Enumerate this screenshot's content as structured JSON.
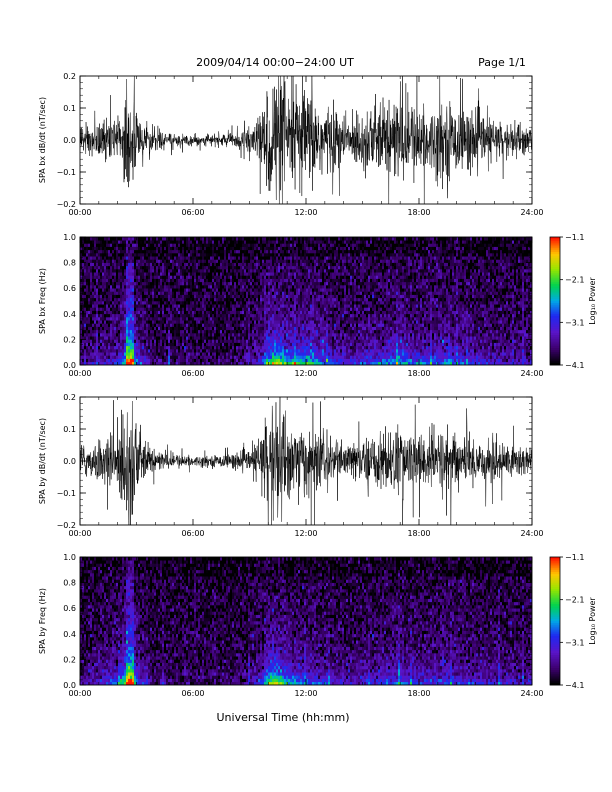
{
  "header": {
    "date_range": "2009/04/14  00:00−24:00 UT",
    "page": "Page 1/1"
  },
  "xlabel": "Universal Time (hh:mm)",
  "chart_data": [
    {
      "type": "line",
      "ylabel": "SPA bx dB/dt (nT/sec)",
      "xlim": [
        0,
        24
      ],
      "ylim": [
        -0.2,
        0.2
      ],
      "x_ticks": [
        "00:00",
        "06:00",
        "12:00",
        "18:00",
        "24:00"
      ],
      "y_ticks": [
        "0.2",
        "0.1",
        "0.0",
        "−0.1",
        "−0.2"
      ],
      "y_tick_values": [
        0.2,
        0.1,
        0.0,
        -0.1,
        -0.2
      ],
      "envelope": {
        "x": [
          0,
          0.5,
          1,
          1.5,
          2,
          2.3,
          2.5,
          2.6,
          2.8,
          3,
          3.2,
          3.5,
          4,
          5,
          6,
          7,
          8,
          9,
          9.3,
          9.7,
          10,
          10.3,
          10.6,
          11,
          11.5,
          12,
          12.5,
          13,
          13.5,
          14,
          14.5,
          15,
          15.5,
          16,
          16.5,
          17,
          17.5,
          18,
          18.5,
          19,
          19.5,
          20,
          21,
          22,
          23,
          24
        ],
        "amplitude": [
          0.04,
          0.05,
          0.055,
          0.06,
          0.075,
          0.12,
          0.2,
          0.2,
          0.2,
          0.11,
          0.07,
          0.05,
          0.03,
          0.02,
          0.015,
          0.015,
          0.02,
          0.03,
          0.05,
          0.09,
          0.17,
          0.2,
          0.19,
          0.16,
          0.15,
          0.15,
          0.13,
          0.11,
          0.09,
          0.07,
          0.07,
          0.09,
          0.1,
          0.1,
          0.11,
          0.13,
          0.11,
          0.1,
          0.09,
          0.1,
          0.11,
          0.09,
          0.08,
          0.06,
          0.05,
          0.05
        ]
      }
    },
    {
      "type": "heatmap",
      "ylabel": "SPA bx Freq (Hz)",
      "xlim": [
        0,
        24
      ],
      "ylim": [
        0.0,
        1.0
      ],
      "x_ticks": [
        "00:00",
        "06:00",
        "12:00",
        "18:00",
        "24:00"
      ],
      "y_ticks": [
        "1.0",
        "0.8",
        "0.6",
        "0.4",
        "0.2",
        "0.0"
      ],
      "y_tick_values": [
        1.0,
        0.8,
        0.6,
        0.4,
        0.2,
        0.0
      ],
      "colorbar": {
        "label": "Log₁₀ Power",
        "ticks": [
          "−1.1",
          "−2.1",
          "−3.1",
          "−4.1"
        ],
        "range": [
          -4.1,
          -1.1
        ]
      }
    },
    {
      "type": "line",
      "ylabel": "SPA by dB/dt (nT/sec)",
      "xlim": [
        0,
        24
      ],
      "ylim": [
        -0.2,
        0.2
      ],
      "x_ticks": [
        "00:00",
        "06:00",
        "12:00",
        "18:00",
        "24:00"
      ],
      "y_ticks": [
        "0.2",
        "0.1",
        "0.0",
        "−0.1",
        "−0.2"
      ],
      "y_tick_values": [
        0.2,
        0.1,
        0.0,
        -0.1,
        -0.2
      ],
      "envelope": {
        "x": [
          0,
          0.5,
          1,
          1.5,
          2,
          2.3,
          2.5,
          2.6,
          2.8,
          3,
          3.2,
          3.5,
          4,
          5,
          6,
          7,
          8,
          9,
          9.3,
          9.7,
          10,
          10.3,
          10.6,
          11,
          11.5,
          12,
          12.5,
          13,
          13.5,
          14,
          14.5,
          15,
          15.5,
          16,
          16.5,
          17,
          17.5,
          18,
          18.5,
          19,
          19.5,
          20,
          21,
          22,
          23,
          24
        ],
        "amplitude": [
          0.04,
          0.05,
          0.06,
          0.07,
          0.1,
          0.15,
          0.2,
          0.2,
          0.2,
          0.12,
          0.08,
          0.05,
          0.03,
          0.02,
          0.015,
          0.015,
          0.02,
          0.03,
          0.05,
          0.1,
          0.18,
          0.2,
          0.17,
          0.13,
          0.11,
          0.1,
          0.09,
          0.08,
          0.06,
          0.05,
          0.05,
          0.06,
          0.07,
          0.08,
          0.09,
          0.1,
          0.08,
          0.08,
          0.08,
          0.09,
          0.1,
          0.08,
          0.07,
          0.06,
          0.05,
          0.05
        ]
      }
    },
    {
      "type": "heatmap",
      "ylabel": "SPA by Freq (Hz)",
      "xlim": [
        0,
        24
      ],
      "ylim": [
        0.0,
        1.0
      ],
      "x_ticks": [
        "00:00",
        "06:00",
        "12:00",
        "18:00",
        "24:00"
      ],
      "y_ticks": [
        "1.0",
        "0.8",
        "0.6",
        "0.4",
        "0.2",
        "0.0"
      ],
      "y_tick_values": [
        1.0,
        0.8,
        0.6,
        0.4,
        0.2,
        0.0
      ],
      "colorbar": {
        "label": "Log₁₀ Power",
        "ticks": [
          "−1.1",
          "−2.1",
          "−3.1",
          "−4.1"
        ],
        "range": [
          -4.1,
          -1.1
        ]
      }
    }
  ]
}
